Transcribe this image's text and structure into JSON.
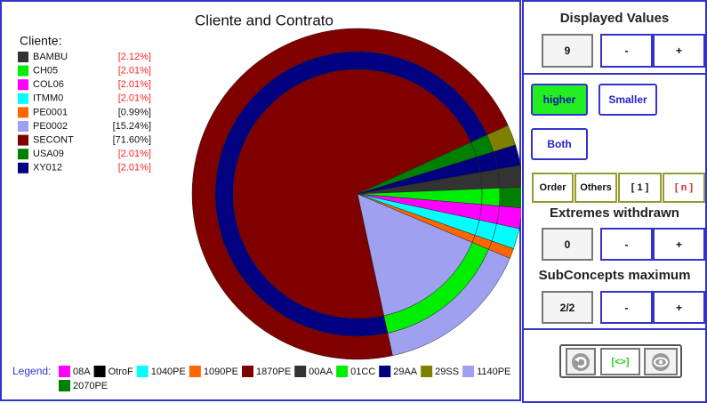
{
  "chart_data": {
    "type": "pie",
    "title": "Cliente and Contrato",
    "legend_title": "Cliente:",
    "categories": [
      "BAMBU",
      "CH05",
      "COL06",
      "ITMM0",
      "PE0001",
      "PE0002",
      "SECONT",
      "USA09",
      "XY012"
    ],
    "values": [
      2.12,
      2.01,
      2.01,
      2.01,
      0.99,
      15.24,
      71.6,
      2.01,
      2.01
    ],
    "value_labels": [
      "[2.12%]",
      "[2.01%]",
      "[2.01%]",
      "[2.01%]",
      "[0.99%]",
      "[15.24%]",
      "[71.60%]",
      "[2.01%]",
      "[2.01%]"
    ],
    "colors": [
      "#333333",
      "#00ee00",
      "#ff00ff",
      "#00ffff",
      "#ff6600",
      "#a0a0f0",
      "#800000",
      "#008000",
      "#000080"
    ],
    "value_label_colors": [
      "#ff2222",
      "#ff2222",
      "#ff2222",
      "#ff2222",
      "#111111",
      "#111111",
      "#111111",
      "#ff2222",
      "#ff2222"
    ],
    "contrato_legend_title": "Legend:",
    "contrato_legend": [
      {
        "name": "08A",
        "color": "#ff00ff"
      },
      {
        "name": "OtroF",
        "color": "#000000"
      },
      {
        "name": "1040PE",
        "color": "#00ffff"
      },
      {
        "name": "1090PE",
        "color": "#ff6600"
      },
      {
        "name": "1870PE",
        "color": "#800000"
      },
      {
        "name": "00AA",
        "color": "#333333"
      },
      {
        "name": "01CC",
        "color": "#00ee00"
      },
      {
        "name": "29AA",
        "color": "#000080"
      },
      {
        "name": "29SS",
        "color": "#808000"
      },
      {
        "name": "1140PE",
        "color": "#a0a0f0"
      },
      {
        "name": "2070PE",
        "color": "#008000"
      }
    ],
    "rings": [
      {
        "segments": [
          {
            "name": "00AA",
            "value": 2.12
          },
          {
            "name": "01CC",
            "value": 2.01
          },
          {
            "name": "08A",
            "value": 2.01
          },
          {
            "name": "1040PE",
            "value": 2.01
          },
          {
            "name": "1090PE",
            "value": 0.99
          },
          {
            "name": "01CC",
            "value": 15.24
          },
          {
            "name": "29AA",
            "value": 71.6
          },
          {
            "name": "2070PE",
            "value": 2.01
          },
          {
            "name": "29AA",
            "value": 2.01
          }
        ]
      },
      {
        "segments": [
          {
            "name": "00AA",
            "value": 2.12
          },
          {
            "name": "2070PE",
            "value": 2.01
          },
          {
            "name": "08A",
            "value": 2.01
          },
          {
            "name": "1040PE",
            "value": 2.01
          },
          {
            "name": "1090PE",
            "value": 0.99
          },
          {
            "name": "1140PE",
            "value": 15.24
          },
          {
            "name": "1870PE",
            "value": 71.6
          },
          {
            "name": "29SS",
            "value": 2.01
          },
          {
            "name": "29AA",
            "value": 2.01
          }
        ]
      }
    ]
  },
  "controls": {
    "displayed_values": {
      "title": "Displayed Values",
      "value": 9,
      "minus": "-",
      "plus": "+"
    },
    "filters": {
      "higher": "higher",
      "smaller": "Smaller",
      "both": "Both"
    },
    "options": {
      "order": "Order",
      "others": "Others",
      "one": "[ 1 ]",
      "n": "[ n ]"
    },
    "extremes_withdrawn": {
      "title": "Extremes withdrawn",
      "value": 0,
      "minus": "-",
      "plus": "+"
    },
    "subconcepts_maximum": {
      "title": "SubConcepts maximum",
      "value": "2/2",
      "minus": "-",
      "plus": "+"
    },
    "toolbar": {
      "toggle": "[<>]"
    }
  }
}
